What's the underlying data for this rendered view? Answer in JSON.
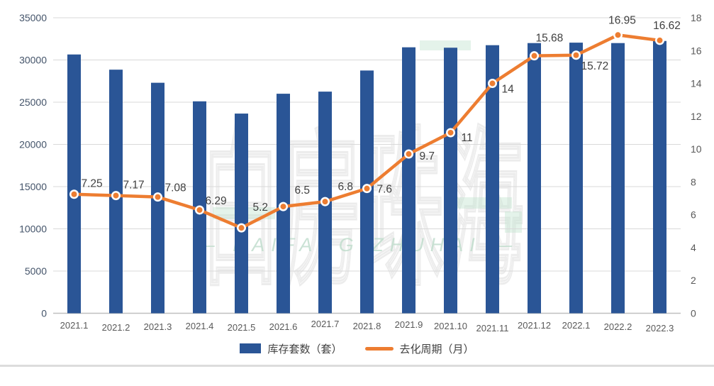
{
  "chart_data": {
    "type": "combo bar+line",
    "title": "",
    "categories": [
      "2021.1",
      "2021.2",
      "2021.3",
      "2021.4",
      "2021.5",
      "2021.6",
      "2021.7",
      "2021.8",
      "2021.9",
      "2021.10",
      "2021.11",
      "2021.12",
      "2022.1",
      "2022.2",
      "2022.3"
    ],
    "series": [
      {
        "name": "库存套数（套）",
        "type": "bar",
        "axis": "left",
        "color": "#2A5596",
        "values": [
          30650,
          28850,
          27300,
          25100,
          23650,
          26000,
          26250,
          28750,
          31500,
          31450,
          31750,
          32000,
          32050,
          32000,
          32250
        ]
      },
      {
        "name": "去化周期（月）",
        "type": "line",
        "axis": "right",
        "color": "#ED7D31",
        "values": [
          7.25,
          7.17,
          7.08,
          6.29,
          5.2,
          6.5,
          6.8,
          7.6,
          9.7,
          11,
          14,
          15.68,
          15.72,
          16.95,
          16.62
        ],
        "data_labels": [
          "7.25",
          "7.17",
          "7.08",
          "6.29",
          "5.2",
          "6.5",
          "6.8",
          "7.6",
          "9.7",
          "11",
          "14",
          "15.68",
          "15.72",
          "16.95",
          "16.62"
        ]
      }
    ],
    "left_axis": {
      "min": 0,
      "max": 35000,
      "step": 5000,
      "tick_labels": [
        "0",
        "5000",
        "10000",
        "15000",
        "20000",
        "25000",
        "30000",
        "35000"
      ]
    },
    "right_axis": {
      "min": 0,
      "max": 18,
      "step": 2,
      "tick_labels": [
        "0",
        "2",
        "4",
        "6",
        "8",
        "10",
        "12",
        "14",
        "16",
        "18"
      ]
    },
    "grid": true,
    "legend_position": "bottom"
  },
  "legend": {
    "bar_label": "库存套数（套）",
    "line_label": "去化周期（月）"
  },
  "watermark": {
    "text": "白房珠海",
    "caption": "— BAIFANG ZHUHAI —"
  },
  "colors": {
    "bar": "#2A5596",
    "line": "#ED7D31",
    "marker_ring": "#FFFFFF",
    "grid": "#D9D9D9",
    "axis_line": "#BFBFBF",
    "left_tick_text": "#44546A",
    "right_tick_text": "#595959",
    "x_tick_text": "#595959",
    "data_label_text": "#404040",
    "legend_text": "#404040",
    "watermark_mint": "#BEE3CE"
  }
}
